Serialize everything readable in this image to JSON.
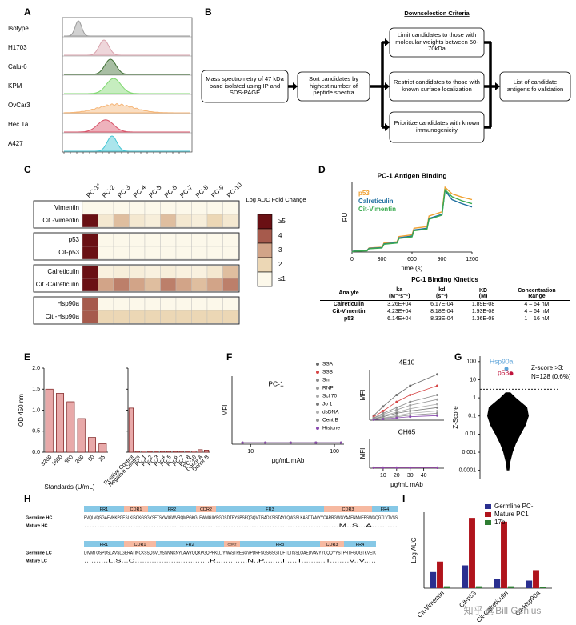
{
  "panel_labels": [
    "A",
    "B",
    "C",
    "D",
    "E",
    "F",
    "G",
    "H",
    "I"
  ],
  "flow": {
    "samples": [
      "Isotype",
      "H1703",
      "Calu-6",
      "KPM",
      "OvCar3",
      "Hec 1a",
      "A427"
    ],
    "colors": [
      "#9a9a9a",
      "#d9a3ad",
      "#3f6f34",
      "#80d870",
      "#f5b678",
      "#d9556a",
      "#45c6d4"
    ]
  },
  "workflow": {
    "title": "Downselection Criteria",
    "steps": [
      "Mass spectrometry of 47 kDa band isolated using IP and SDS-PAGE",
      "Sort candidates by highest number of peptide spectra",
      "Limit candidates to those with molecular weights between 50-70kDa",
      "Restrict candidates to those with known surface localization",
      "Prioritize candidates with known immunogenicity",
      "List of candidate antigens fo validation"
    ]
  },
  "chart_data": [
    {
      "type": "heatmap",
      "columns": [
        "PC-1*",
        "PC-2",
        "PC-3",
        "PC-4",
        "PC-5",
        "PC-6",
        "PC-7",
        "PC-8",
        "PC-9",
        "PC-10"
      ],
      "rows": [
        "Vimentin",
        "Cit -Vimentin",
        "p53",
        "Cit-p53",
        "Calreticulin",
        "Cit -Calreticulin",
        "Hsp90a",
        "Cit -Hsp90a"
      ],
      "values": [
        [
          1,
          1,
          1,
          1,
          1,
          1,
          1,
          1,
          1,
          1
        ],
        [
          5,
          1.5,
          2.5,
          1.5,
          1.3,
          2.5,
          1.5,
          1.3,
          2,
          1.5
        ],
        [
          5,
          1,
          1,
          1,
          1,
          1,
          1,
          1,
          1,
          1
        ],
        [
          5,
          1,
          1,
          1,
          1,
          1,
          1,
          1,
          1,
          1
        ],
        [
          5,
          1.2,
          1.3,
          1.3,
          1.2,
          1.3,
          1.2,
          1.2,
          1.5,
          2.5
        ],
        [
          5,
          3,
          3.5,
          3,
          2.5,
          3.5,
          3,
          2.5,
          3,
          3.5
        ],
        [
          4,
          1,
          1,
          1,
          1,
          1,
          1,
          1,
          1,
          1
        ],
        [
          4,
          2,
          2,
          2,
          2,
          2,
          2,
          2,
          2,
          2
        ]
      ],
      "colorbar_title": "Log AUC Fold Change",
      "colorbar_ticks": [
        {
          "value": 5,
          "label": "≥5"
        },
        4,
        3,
        2,
        {
          "value": 1,
          "label": "≤1"
        }
      ],
      "colorscale": [
        "#fcf8ea",
        "#ecd7b5",
        "#d2a488",
        "#a65a4c",
        "#6a1014"
      ]
    },
    {
      "type": "line",
      "title": "PC-1 Antigen Binding",
      "x": [
        0,
        20,
        150,
        170,
        300,
        320,
        450,
        470,
        600,
        620,
        750,
        770,
        900,
        930,
        1000,
        1100,
        1200
      ],
      "xlim": [
        0,
        1200
      ],
      "xticks": [
        0,
        300,
        600,
        900,
        1200
      ],
      "ylim": [
        0,
        170
      ],
      "xlabel": "time (s)",
      "ylabel": "RU",
      "series": [
        {
          "name": "p53",
          "color": "#f0a030",
          "values": [
            0,
            3,
            4,
            10,
            12,
            22,
            25,
            38,
            42,
            58,
            62,
            88,
            98,
            158,
            142,
            134,
            128
          ]
        },
        {
          "name": "Calreticulin",
          "color": "#1f6fa0",
          "values": [
            0,
            3,
            4,
            9,
            11,
            20,
            23,
            35,
            39,
            54,
            58,
            82,
            92,
            150,
            128,
            118,
            110
          ]
        },
        {
          "name": "Cit-Vimentin",
          "color": "#3aaa50",
          "values": [
            0,
            2,
            3,
            8,
            10,
            19,
            22,
            33,
            37,
            52,
            56,
            80,
            90,
            152,
            135,
            125,
            118
          ]
        }
      ]
    },
    {
      "type": "bar",
      "categories": [
        "3200",
        "1600",
        "800",
        "200",
        "50",
        "25"
      ],
      "values": [
        1.5,
        1.4,
        1.2,
        0.8,
        0.35,
        0.2
      ],
      "ylim": [
        0,
        2
      ],
      "yticks": [
        {
          "value": 0,
          "label": "0.0"
        },
        {
          "value": 0.5,
          "label": "0.5"
        },
        {
          "value": 1,
          "label": "1.0"
        },
        {
          "value": 1.5,
          "label": "1.5"
        },
        {
          "value": 2,
          "label": "2.0"
        }
      ],
      "ylabel": "OD 450 nm",
      "xlabel": "Standards (U/mL)",
      "color": "#e8a9a9",
      "edgecolor": "#7a1a1a"
    },
    {
      "type": "bar",
      "categories": [
        "Positive Control",
        "Negative Control",
        "PC-1",
        "PC-2",
        "PC-3",
        "PC-4",
        "PC-5",
        "PC-6",
        "PC-7",
        "PC-8",
        "PC-10",
        "Donor A",
        "Donor B"
      ],
      "values": [
        1.05,
        0.02,
        0.03,
        0.02,
        0.02,
        0.02,
        0.02,
        0.02,
        0.02,
        0.02,
        0.03,
        0.06,
        0.05
      ],
      "ylim": [
        0,
        2
      ],
      "color": "#e8a9a9",
      "edgecolor": "#7a1a1a"
    },
    {
      "type": "line",
      "title": "PC-1",
      "x": [
        8,
        15,
        30,
        60,
        120
      ],
      "xlim": [
        6,
        130
      ],
      "xscale": "log",
      "xticks": [
        10,
        100
      ],
      "ylim": [
        0,
        220
      ],
      "ylabel": "MFI",
      "xlabel": "μg/mL mAb",
      "series": [
        {
          "name": "SSA",
          "color": "#6b6b6b",
          "values": [
            5,
            5,
            5,
            5,
            5
          ]
        },
        {
          "name": "SSB",
          "color": "#d64545",
          "values": [
            5,
            5,
            5,
            5,
            5
          ]
        },
        {
          "name": "Sm",
          "color": "#8a8a8a",
          "values": [
            5,
            5,
            5,
            5,
            5
          ]
        },
        {
          "name": "RNP",
          "color": "#9a9a9a",
          "values": [
            5,
            5,
            5,
            5,
            5
          ]
        },
        {
          "name": "Scl 70",
          "color": "#aaaaaa",
          "values": [
            5,
            5,
            5,
            5,
            5
          ]
        },
        {
          "name": "Jo 1",
          "color": "#7a7a7a",
          "values": [
            5,
            5,
            5,
            5,
            5
          ]
        },
        {
          "name": "dsDNA",
          "color": "#b0b0b0",
          "values": [
            5,
            5,
            5,
            5,
            5
          ]
        },
        {
          "name": "Cent B",
          "color": "#909090",
          "values": [
            5,
            5,
            5,
            5,
            5
          ]
        },
        {
          "name": "Histone",
          "color": "#8a4ab0",
          "values": [
            5,
            5,
            5,
            5,
            5
          ]
        }
      ]
    },
    {
      "type": "line",
      "title": "4E10",
      "x": [
        3,
        10,
        20,
        30,
        50
      ],
      "xlim": [
        0,
        55
      ],
      "ylim": [
        0,
        220
      ],
      "ylabel": "MFI",
      "series": [
        {
          "color": "#6b6b6b",
          "values": [
            20,
            60,
            110,
            150,
            200
          ]
        },
        {
          "color": "#d64545",
          "values": [
            15,
            40,
            80,
            110,
            150
          ]
        },
        {
          "color": "#8a8a8a",
          "values": [
            10,
            30,
            55,
            80,
            110
          ]
        },
        {
          "color": "#9a9a9a",
          "values": [
            8,
            25,
            45,
            65,
            90
          ]
        },
        {
          "color": "#aaaaaa",
          "values": [
            5,
            20,
            35,
            50,
            70
          ]
        },
        {
          "color": "#7a7a7a",
          "values": [
            5,
            15,
            30,
            40,
            55
          ]
        },
        {
          "color": "#b0b0b0",
          "values": [
            3,
            10,
            20,
            30,
            40
          ]
        },
        {
          "color": "#909090",
          "values": [
            2,
            8,
            15,
            22,
            30
          ]
        },
        {
          "color": "#8a4ab0",
          "values": [
            2,
            5,
            10,
            15,
            20
          ]
        }
      ]
    },
    {
      "type": "line",
      "title": "CH65",
      "x": [
        3,
        10,
        20,
        30,
        50
      ],
      "xlim": [
        0,
        55
      ],
      "xticks": [
        10,
        20,
        30,
        40
      ],
      "ylim": [
        0,
        220
      ],
      "ylabel": "MFI",
      "xlabel": "μg/mL mAb",
      "series": [
        {
          "color": "#6b6b6b",
          "values": [
            4,
            4,
            4,
            4,
            4
          ]
        },
        {
          "color": "#d64545",
          "values": [
            4,
            4,
            4,
            4,
            4
          ]
        },
        {
          "color": "#8a4ab0",
          "values": [
            4,
            4,
            4,
            4,
            4
          ]
        }
      ]
    },
    {
      "type": "scatter",
      "ylabel": "Z-Score",
      "yscale": "log",
      "ylim": [
        3.5e-05,
        200
      ],
      "yticks": [
        100,
        10,
        1,
        0.1,
        0.01,
        0.001,
        0.0001
      ],
      "threshold": 3,
      "points": [
        {
          "name": "Hsp90a",
          "value": 40,
          "color": "#5ba3d9"
        },
        {
          "name": "p53",
          "value": 22,
          "color": "#c0143c"
        }
      ],
      "annotations": [
        "Z-score >3:",
        "N=128 (0.6%)"
      ]
    },
    {
      "type": "grouped_bar",
      "categories": [
        "Cit-Vimentin",
        "Cit-p53",
        "Cit-Calreticulin",
        "Cit-Hsp90a"
      ],
      "ylabel": "Log AUC",
      "ylim": [
        0,
        8
      ],
      "series": [
        {
          "name": "Germline PC-",
          "color": "#2a2f8f",
          "values": [
            1.7,
            2.4,
            1.0,
            0.8
          ]
        },
        {
          "name": "Mature PC1",
          "color": "#b0141c",
          "values": [
            2.8,
            7.4,
            7.0,
            1.9
          ]
        },
        {
          "name": "17b",
          "color": "#2e7d32",
          "values": [
            0.2,
            0.2,
            0.2,
            0.1
          ]
        }
      ]
    }
  ],
  "kinetics_table": {
    "title": "PC-1 Binding Kinetics",
    "header": [
      [
        "Analyte"
      ],
      [
        "ka",
        "(M⁻¹s⁻¹)"
      ],
      [
        "kd",
        "(s⁻¹)"
      ],
      [
        "KD",
        "(M)"
      ],
      [
        "Concentration",
        "Range"
      ]
    ],
    "rows": [
      [
        "Calreticulin",
        "3.26E+04",
        "6.17E-04",
        "1.89E-08",
        "4 – 64 nM"
      ],
      [
        "Cit-Vimentin",
        "4.23E+04",
        "8.18E-04",
        "1.93E-08",
        "4 – 64 nM"
      ],
      [
        "p53",
        "6.14E+04",
        "8.33E-04",
        "1.36E-08",
        "1 – 16 nM"
      ]
    ]
  },
  "alignment": {
    "hc": {
      "regions": [
        "FR1",
        "CDR1",
        "FR2",
        "CDR2",
        "FR3",
        "CDR3",
        "FR4"
      ],
      "labels": [
        "Germline HC",
        "Mature HC"
      ],
      "sequences": [
        "EVQLVQSGAEVKKPGESLKISCKGSGYSFTSYWIGWVRQMPGKGLEWMGIIYPGDSDTRYSPSFQGQVTISADKSISTAYLQWSSLKASDTAMYYCARRGWGYAAFNNMFPSWGQGTLVTVSS",
        "...................................................................................................M..S...A.........."
      ]
    },
    "lc": {
      "regions": [
        "FR1",
        "CDR1",
        "FR2",
        "CDR2",
        "FR3",
        "CDR3",
        "FR4"
      ],
      "labels": [
        "Germline LC",
        "Mature LC"
      ],
      "sequences": [
        "DIVMTQSPDSLAVSLGERATINCKSSQSVLYSSNNKNYLAWYQQKPGQPPKLLIYWASTRESGVPDRFSGSGSGTDFTLTISSLQAEDVAVYYCQQYYSTPRTFGQGTKVEIK",
        "..........L.S...C...............................R.............N..P........I.....T..........T........V..V....."
      ]
    }
  },
  "watermark": "知乎 @Bill Genius"
}
